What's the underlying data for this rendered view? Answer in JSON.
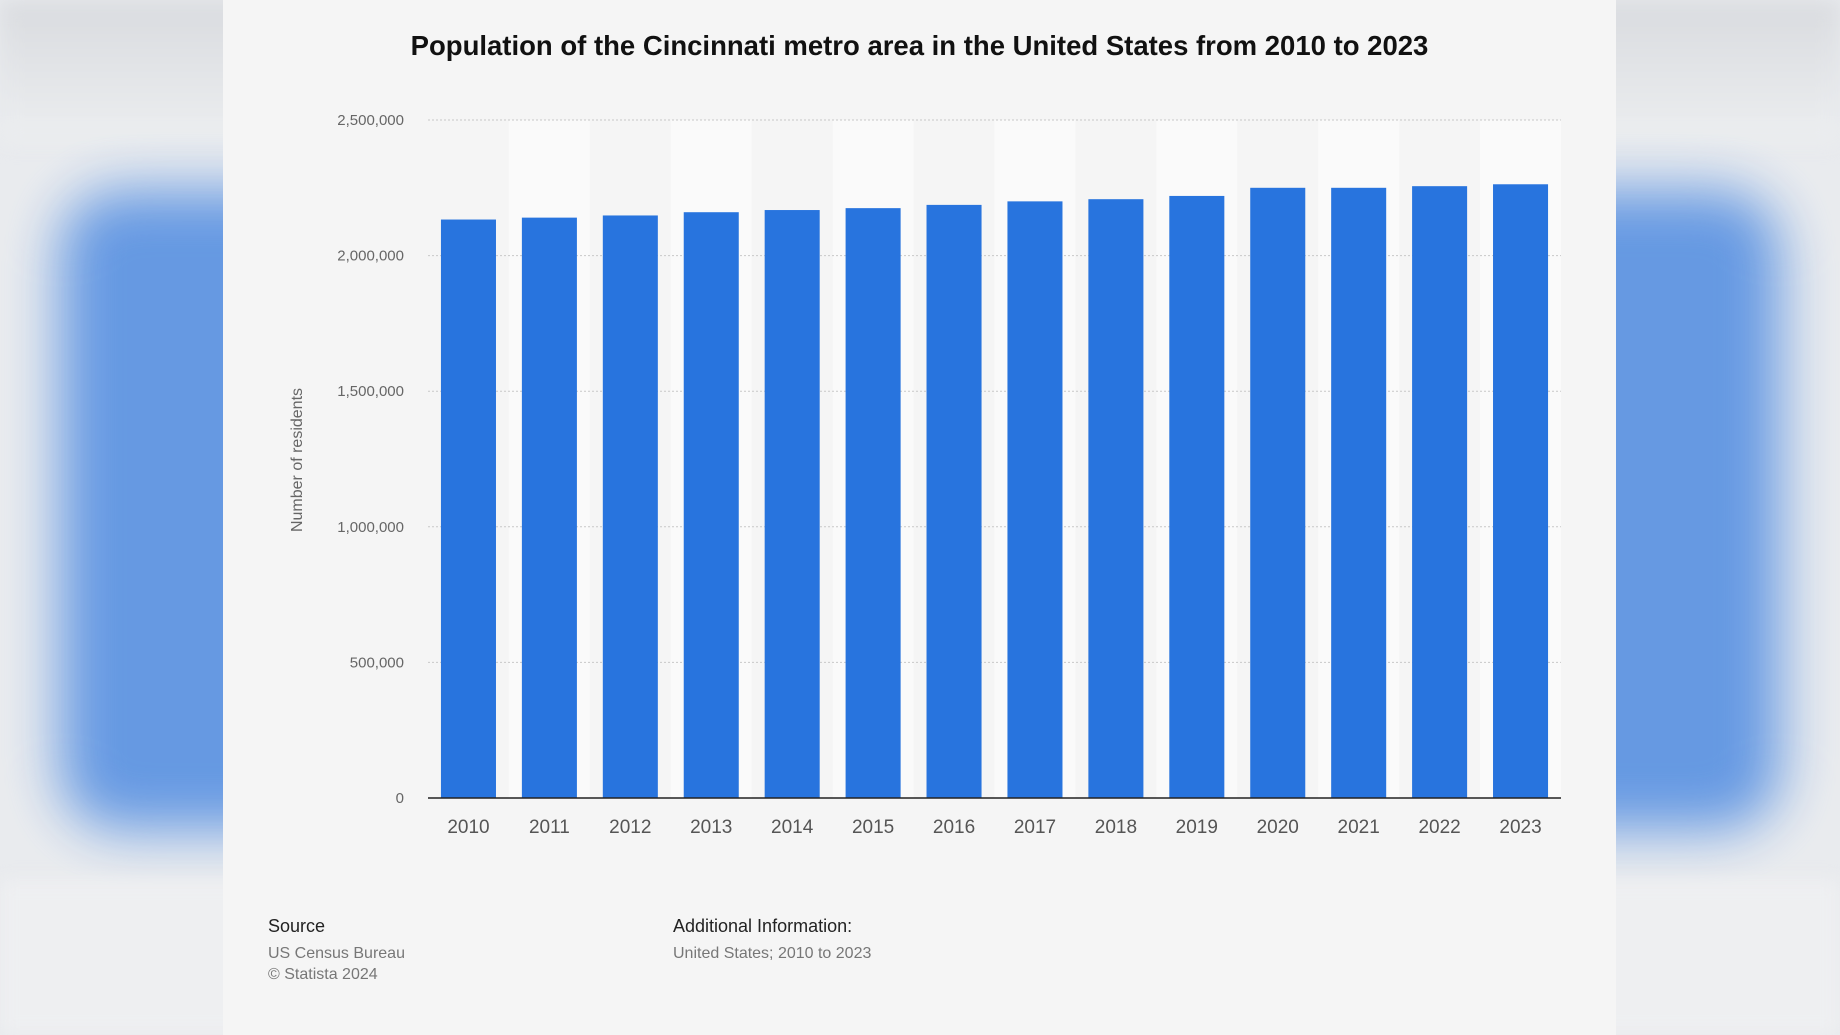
{
  "chart_data": {
    "type": "bar",
    "title": "Population of the Cincinnati metro area in the United States from 2010 to 2023",
    "xlabel": "",
    "ylabel": "Number of residents",
    "ylim": [
      0,
      2500000
    ],
    "yticks": [
      0,
      500000,
      1000000,
      1500000,
      2000000,
      2500000
    ],
    "ytick_labels": [
      "0",
      "500,000",
      "1,000,000",
      "1,500,000",
      "2,000,000",
      "2,500,000"
    ],
    "categories": [
      "2010",
      "2011",
      "2012",
      "2013",
      "2014",
      "2015",
      "2016",
      "2017",
      "2018",
      "2019",
      "2020",
      "2021",
      "2022",
      "2023"
    ],
    "values": [
      2133000,
      2140000,
      2148000,
      2160000,
      2168000,
      2175000,
      2187000,
      2200000,
      2208000,
      2220000,
      2250000,
      2250000,
      2256000,
      2263000
    ],
    "bar_color": "#2874de",
    "grid": true
  },
  "footer": {
    "source_title": "Source",
    "source_name": "US Census Bureau",
    "copyright": "© Statista 2024",
    "additional_title": "Additional Information:",
    "additional_text": "United States; 2010 to 2023"
  }
}
